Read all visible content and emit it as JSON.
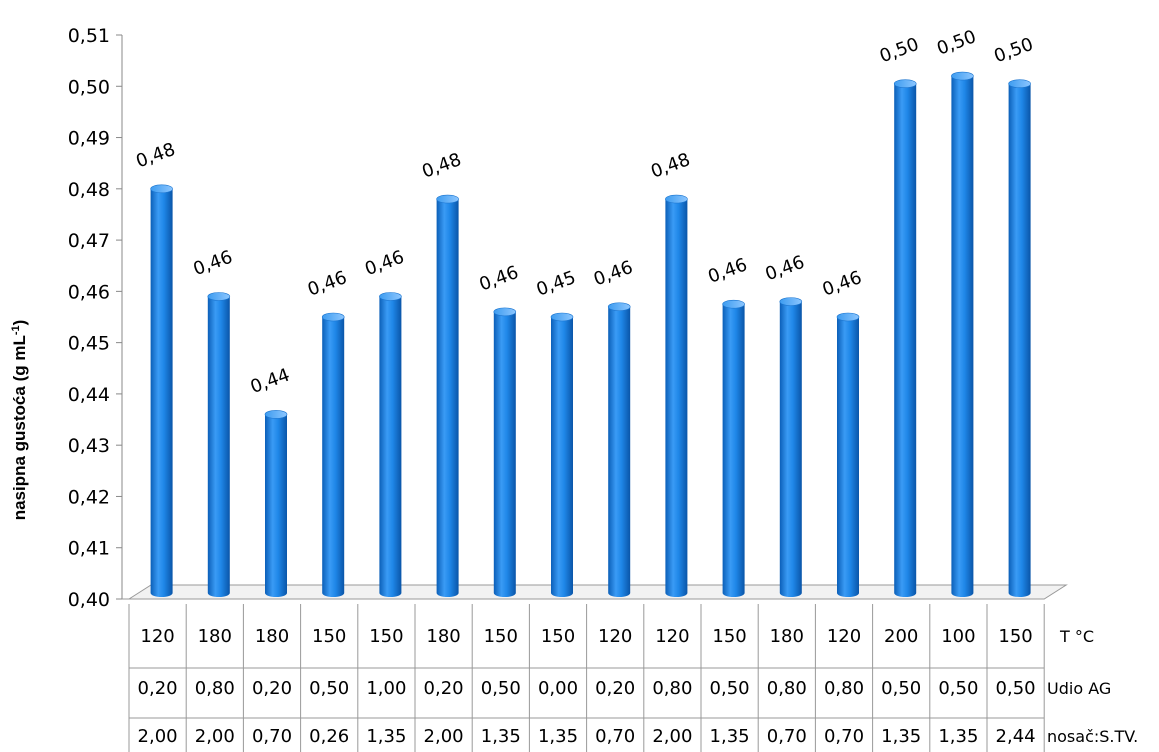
{
  "chart_data": {
    "type": "bar",
    "ylabel": "nasipna gustoća (g mL-1)",
    "ylabel_main": "nasipna gustoća (g mL",
    "ylabel_sup": "-1",
    "ylabel_close": ")",
    "ylim": [
      0.4,
      0.51
    ],
    "yticks": [
      "0,40",
      "0,41",
      "0,42",
      "0,43",
      "0,44",
      "0,45",
      "0,46",
      "0,47",
      "0,48",
      "0,49",
      "0,50",
      "0,51"
    ],
    "values": [
      0.48,
      0.459,
      0.436,
      0.455,
      0.459,
      0.478,
      0.456,
      0.455,
      0.457,
      0.478,
      0.4575,
      0.458,
      0.455,
      0.5005,
      0.502,
      0.5005
    ],
    "data_labels": [
      "0,48",
      "0,46",
      "0,44",
      "0,46",
      "0,46",
      "0,48",
      "0,46",
      "0,45",
      "0,46",
      "0,48",
      "0,46",
      "0,46",
      "0,46",
      "0,50",
      "0,50",
      "0,50"
    ],
    "bar_color": "#1f87e8",
    "bar_dark": "#0b5fb8",
    "grid": false,
    "table_rows": [
      {
        "name": "T °C",
        "values": [
          "120",
          "180",
          "180",
          "150",
          "150",
          "180",
          "150",
          "150",
          "120",
          "120",
          "150",
          "180",
          "120",
          "200",
          "100",
          "150"
        ]
      },
      {
        "name": "Udio AG",
        "values": [
          "0,20",
          "0,80",
          "0,20",
          "0,50",
          "1,00",
          "0,20",
          "0,50",
          "0,00",
          "0,20",
          "0,80",
          "0,50",
          "0,80",
          "0,80",
          "0,50",
          "0,50",
          "0,50"
        ]
      },
      {
        "name": "nosač:S.TV.",
        "values": [
          "2,00",
          "2,00",
          "0,70",
          "0,26",
          "1,35",
          "2,00",
          "1,35",
          "1,35",
          "0,70",
          "2,00",
          "1,35",
          "0,70",
          "0,70",
          "1,35",
          "1,35",
          "2,44"
        ]
      }
    ]
  }
}
